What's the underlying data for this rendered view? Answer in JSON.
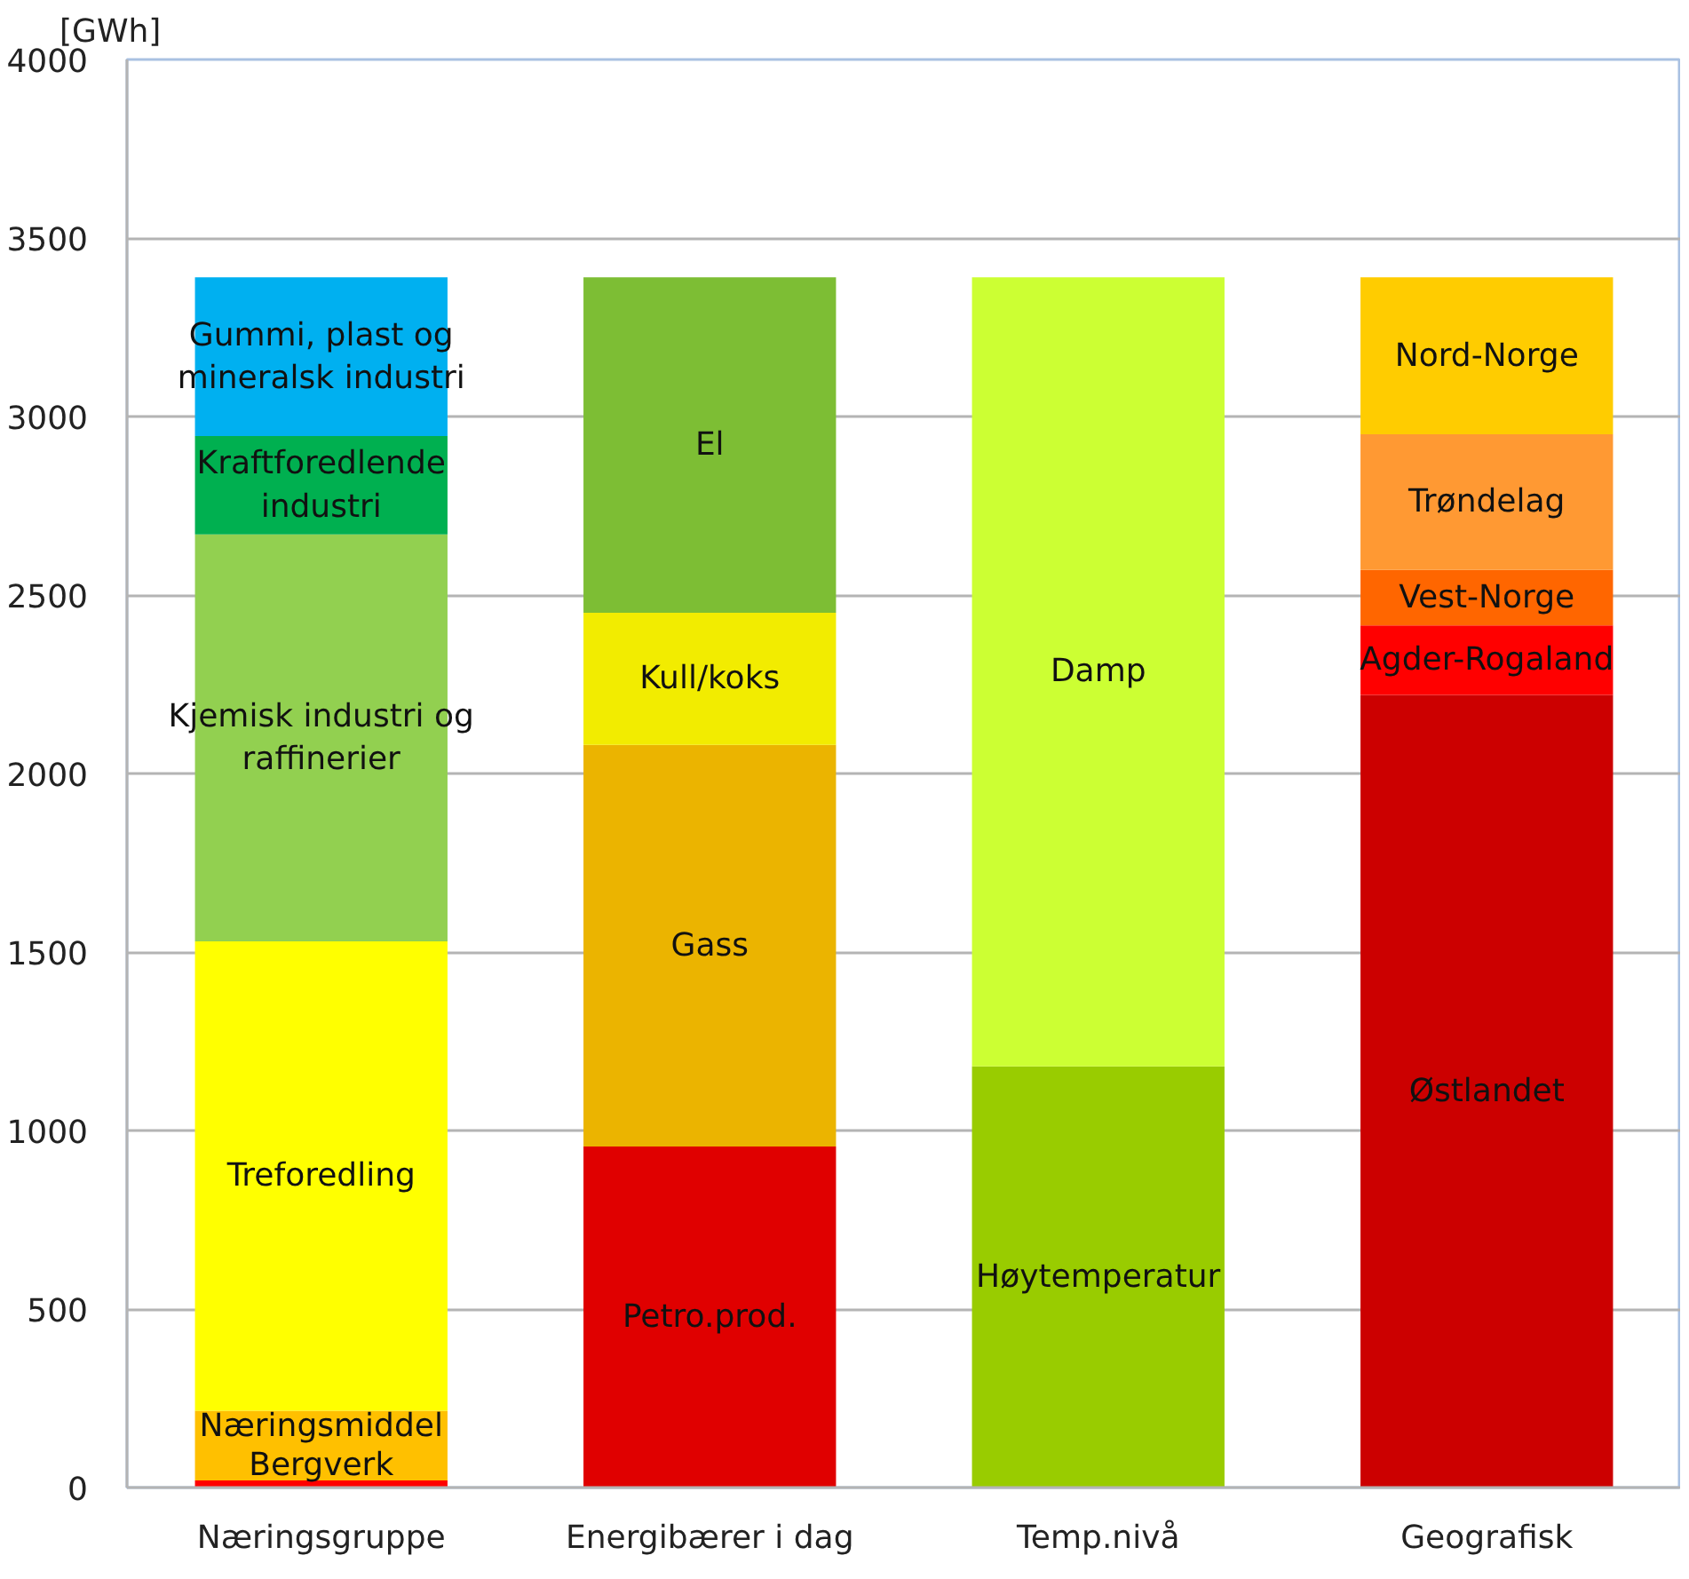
{
  "chart_data": {
    "type": "bar",
    "stacked": true,
    "ylabel": "[GWh]",
    "categories": [
      "Næringsgruppe",
      "Energibærer i dag",
      "Temp.nivå",
      "Geografisk"
    ],
    "ylim": [
      0,
      4000
    ],
    "yticks": [
      0,
      500,
      1000,
      1500,
      2000,
      2500,
      3000,
      3500,
      4000
    ],
    "grid": "y",
    "series": [
      {
        "name": "Bergverk",
        "color": "#ff0000",
        "values": [
          20,
          null,
          null,
          null
        ]
      },
      {
        "name": "Næringsmiddel",
        "color": "#ffc000",
        "values": [
          195,
          null,
          null,
          null
        ]
      },
      {
        "name": "Treforedling",
        "color": "#ffff00",
        "values": [
          1315,
          null,
          null,
          null
        ]
      },
      {
        "name": "Kjemisk industri og\nraffinerier",
        "color": "#92d050",
        "values": [
          1140,
          null,
          null,
          null
        ]
      },
      {
        "name": "Kraftforedlende\nindustri",
        "color": "#00b050",
        "values": [
          275,
          null,
          null,
          null
        ]
      },
      {
        "name": "Gummi, plast og\nmineralsk industri",
        "color": "#00b0f0",
        "values": [
          445,
          null,
          null,
          null
        ]
      },
      {
        "name": "Petro.prod.",
        "color": "#e00000",
        "values": [
          null,
          955,
          null,
          null
        ]
      },
      {
        "name": "Gass",
        "color": "#ebb400",
        "values": [
          null,
          1125,
          null,
          null
        ]
      },
      {
        "name": "Kull/koks",
        "color": "#f2ec00",
        "values": [
          null,
          370,
          null,
          null
        ]
      },
      {
        "name": "El",
        "color": "#7dbe34",
        "values": [
          null,
          940,
          null,
          null
        ]
      },
      {
        "name": "Høytemperatur",
        "color": "#99cc00",
        "values": [
          null,
          null,
          1180,
          null
        ]
      },
      {
        "name": "Damp",
        "color": "#ccff33",
        "values": [
          null,
          null,
          2210,
          null
        ]
      },
      {
        "name": "Østlandet",
        "color": "#cc0000",
        "values": [
          null,
          null,
          null,
          2220
        ]
      },
      {
        "name": "Agder-Rogaland",
        "color": "#ff0000",
        "values": [
          null,
          null,
          null,
          195
        ]
      },
      {
        "name": "Vest-Norge",
        "color": "#ff6600",
        "values": [
          null,
          null,
          null,
          155
        ]
      },
      {
        "name": "Trøndelag",
        "color": "#ff9933",
        "values": [
          null,
          null,
          null,
          380
        ]
      },
      {
        "name": "Nord-Norge",
        "color": "#ffcc00",
        "values": [
          null,
          null,
          null,
          440
        ]
      }
    ]
  }
}
